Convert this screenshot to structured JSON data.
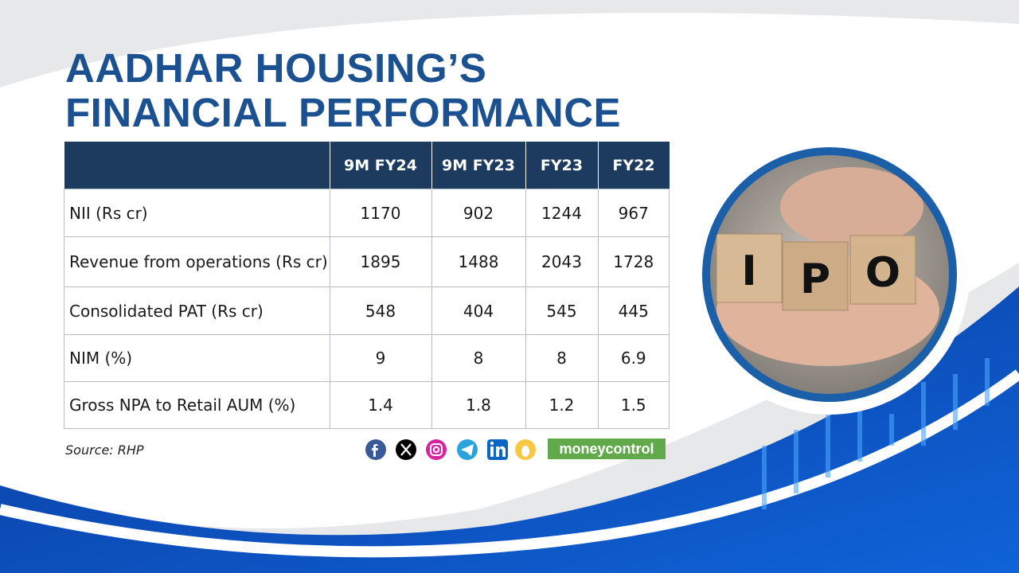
{
  "header": {
    "title": [
      "AADHAR HOUSING’S",
      "FINANCIAL PERFORMANCE"
    ]
  },
  "table": {
    "columns": [
      "9M FY24",
      "9M FY23",
      "FY23",
      "FY22"
    ],
    "rows": [
      [
        "NII (Rs cr)",
        1170,
        902,
        1244,
        967
      ],
      [
        "Revenue from operations (Rs cr)",
        1895,
        1488,
        2043,
        1728
      ],
      [
        "Consolidated PAT (Rs cr)",
        548,
        404,
        545,
        445
      ],
      [
        "NIM (%)",
        9,
        8,
        8,
        6.9
      ],
      [
        "Gross NPA to Retail AUM (%)",
        1.4,
        1.8,
        1.2,
        1.5
      ]
    ]
  },
  "footer": {
    "source": "Source: RHP",
    "brand": "moneycontrol"
  },
  "image": {
    "letters": [
      "I",
      "P",
      "O"
    ]
  }
}
